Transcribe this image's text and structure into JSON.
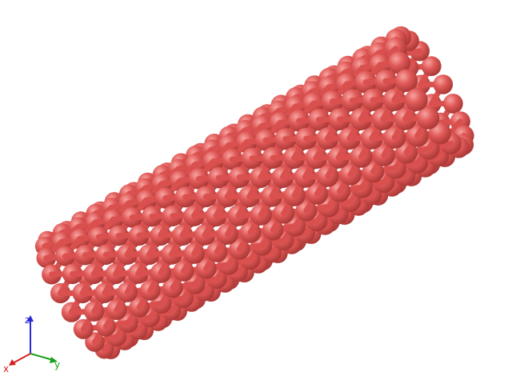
{
  "scene": {
    "atom_color": "#e05a58",
    "atom_highlight": "#f7a3a0",
    "atom_shadow": "#a73634",
    "bond_color": "#d9504e",
    "background": "#ffffff"
  },
  "axes": {
    "x": {
      "label": "x",
      "color": "#d62020"
    },
    "y": {
      "label": "y",
      "color": "#1ea01e"
    },
    "z": {
      "label": "z",
      "color": "#2828d6"
    }
  }
}
